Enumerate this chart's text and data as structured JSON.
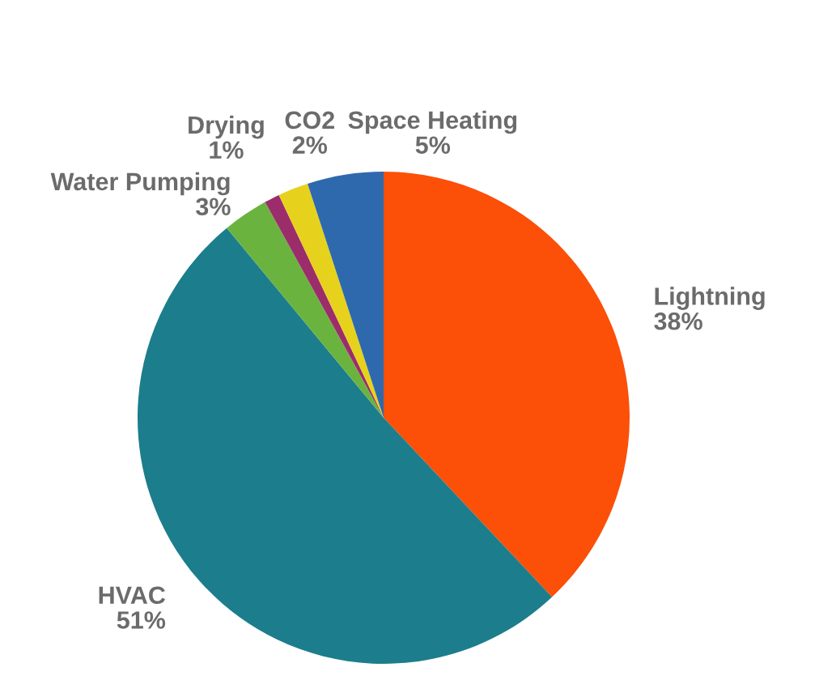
{
  "chart_data": {
    "type": "pie",
    "categories": [
      "Lightning",
      "HVAC",
      "Water Pumping",
      "Drying",
      "CO2",
      "Space Heating"
    ],
    "values": [
      38,
      51,
      3,
      1,
      2,
      5
    ],
    "value_labels": [
      "38%",
      "51%",
      "3%",
      "1%",
      "2%",
      "5%"
    ],
    "colors": [
      "#fc4f08",
      "#1c7d8c",
      "#6bb33f",
      "#9c2d6b",
      "#e6d21c",
      "#2e69ad"
    ]
  }
}
